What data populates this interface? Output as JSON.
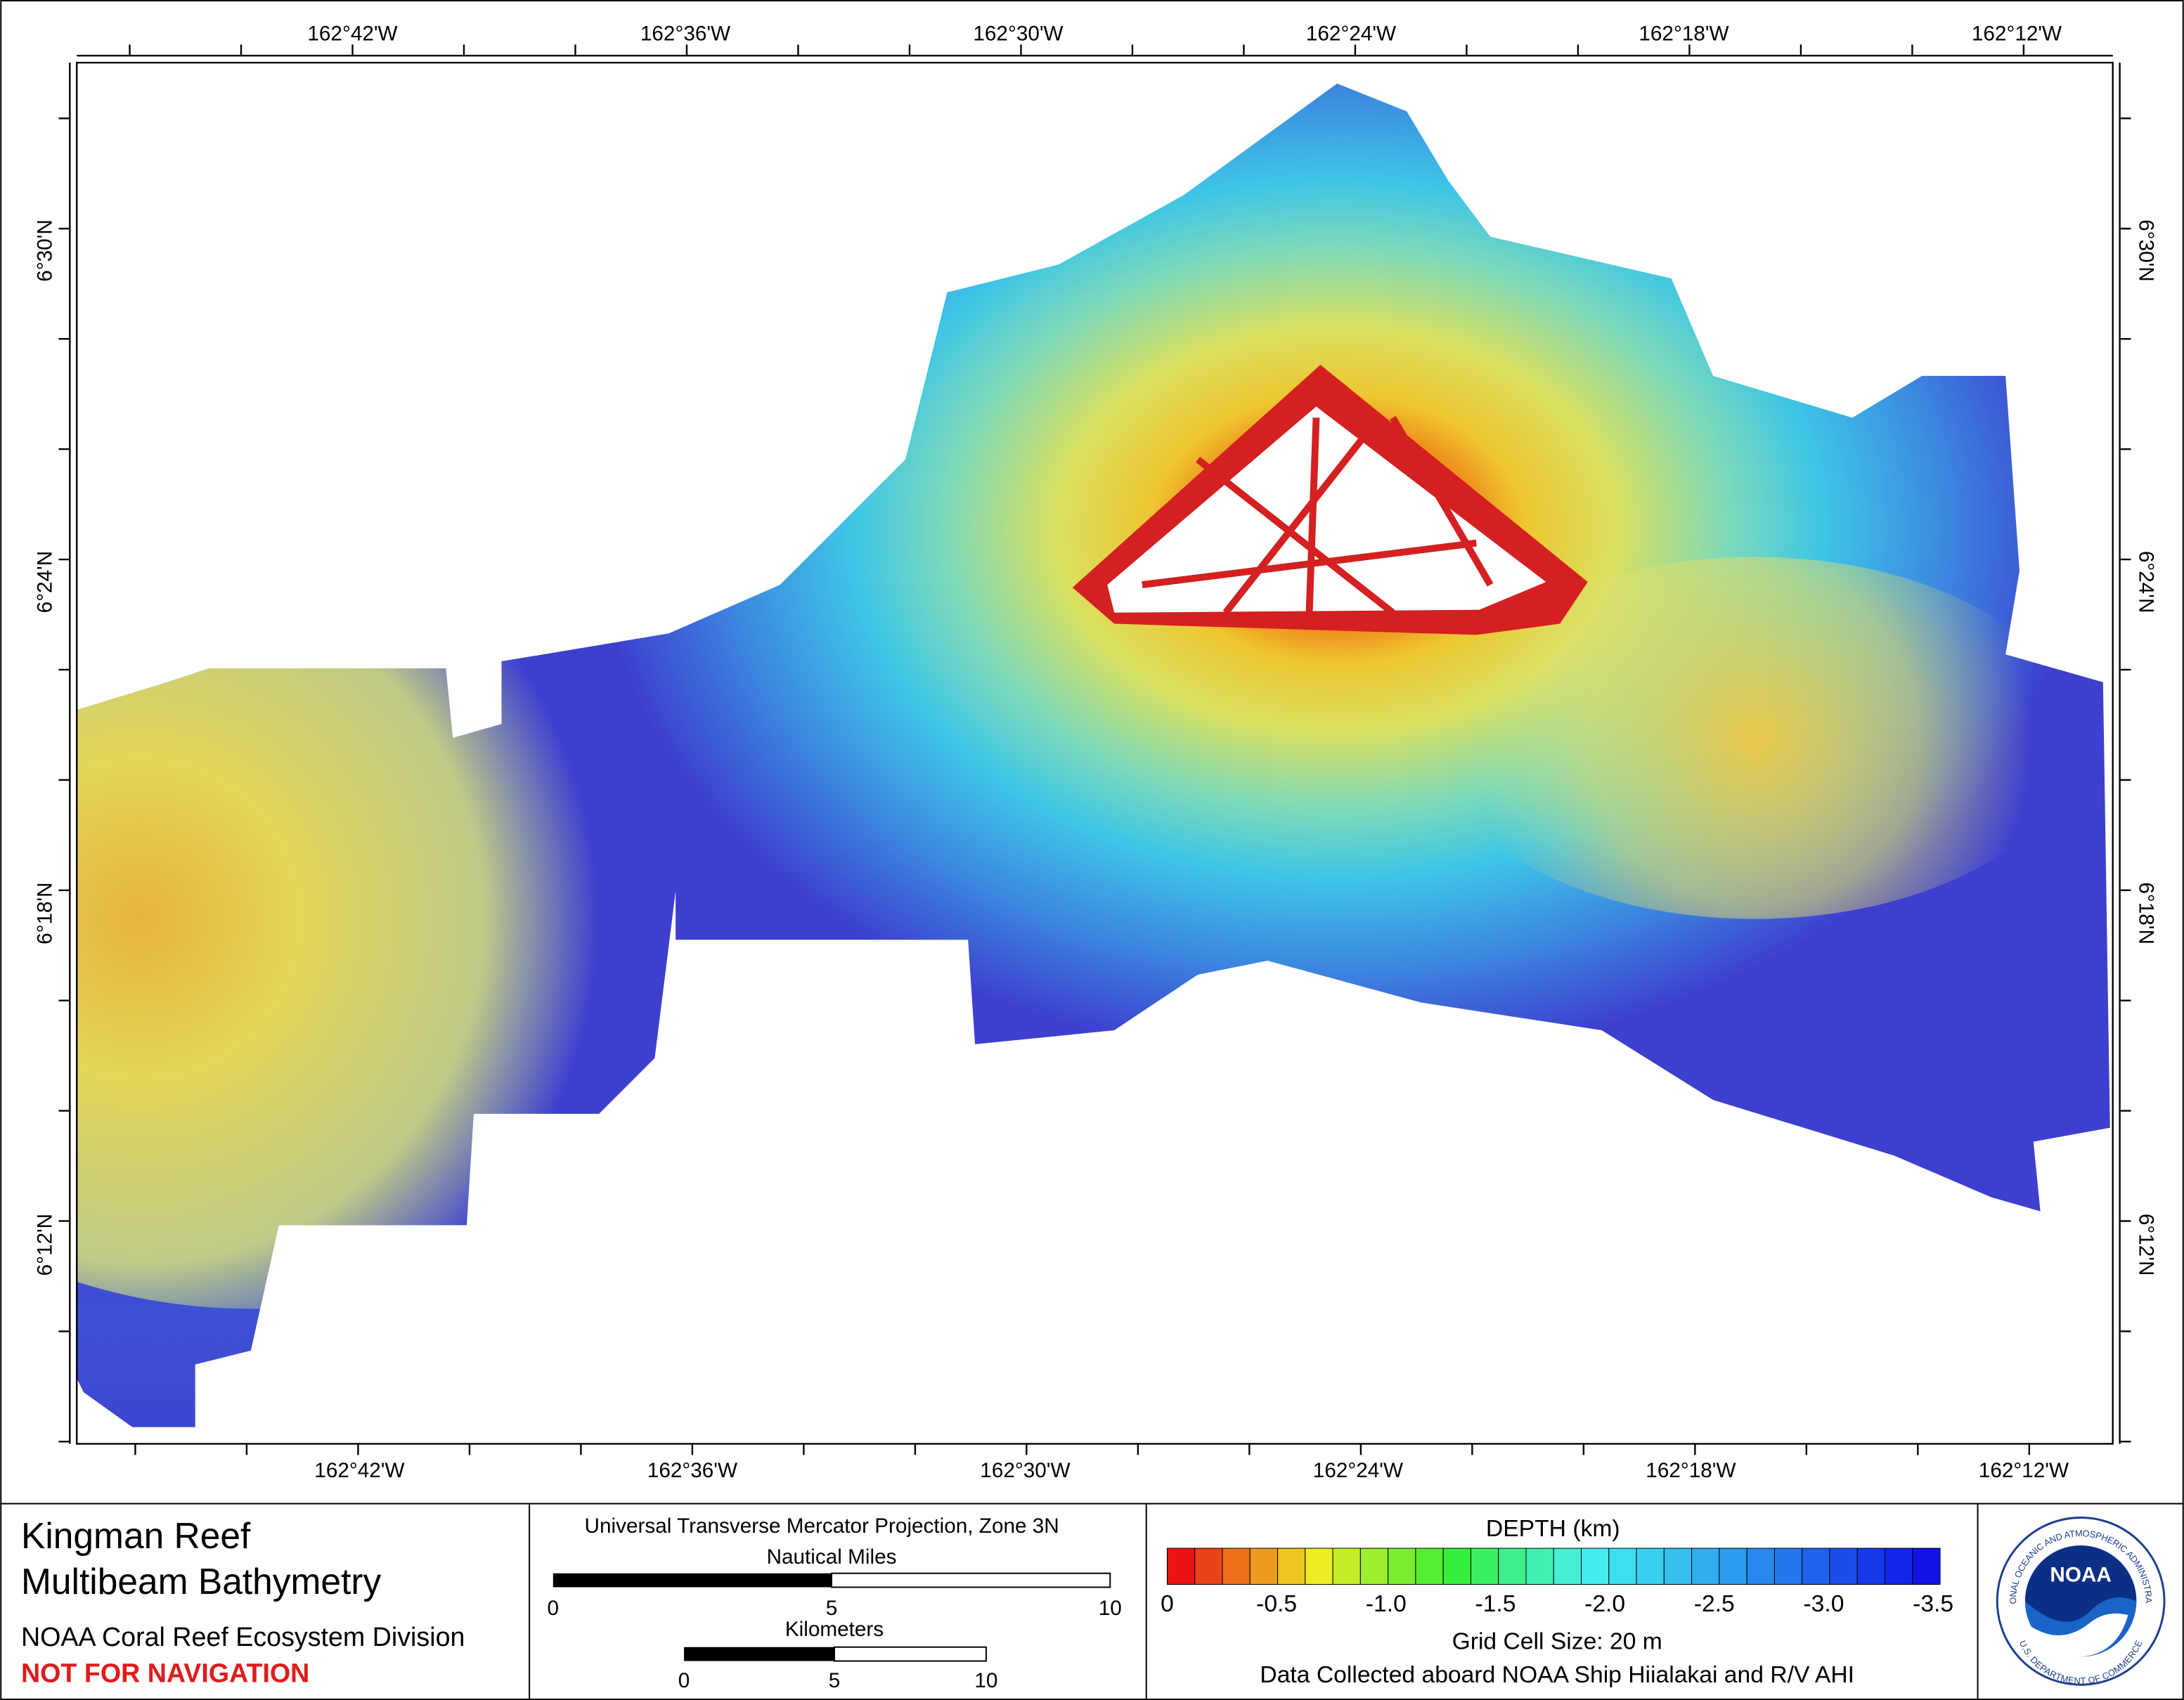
{
  "map": {
    "longitude_labels": [
      "162°42'W",
      "162°36'W",
      "162°30'W",
      "162°24'W",
      "162°18'W",
      "162°12'W"
    ],
    "latitude_labels": [
      "6°30'N",
      "6°24'N",
      "6°18'N",
      "6°12'N"
    ]
  },
  "title_block": {
    "title_line_1": "Kingman Reef",
    "title_line_2": "Multibeam Bathymetry",
    "organization": "NOAA Coral Reef Ecosystem Division",
    "warning": "NOT FOR NAVIGATION"
  },
  "scale_block": {
    "projection": "Universal Transverse Mercator Projection, Zone 3N",
    "nautical_miles": {
      "label": "Nautical Miles",
      "ticks": [
        "0",
        "5",
        "10"
      ]
    },
    "kilometers": {
      "label": "Kilometers",
      "ticks": [
        "0",
        "5",
        "10"
      ]
    }
  },
  "depth_legend": {
    "title": "DEPTH (km)",
    "ticks": [
      "0",
      "-0.5",
      "-1.0",
      "-1.5",
      "-2.0",
      "-2.5",
      "-3.0",
      "-3.5"
    ],
    "grid_cell": "Grid Cell Size: 20 m",
    "credit": "Data Collected aboard NOAA Ship Hiialakai and R/V AHI"
  },
  "logo": {
    "name": "NOAA",
    "top_text": "NATIONAL OCEANIC AND ATMOSPHERIC ADMINISTRATION",
    "bottom_text": "U.S. DEPARTMENT OF COMMERCE"
  }
}
